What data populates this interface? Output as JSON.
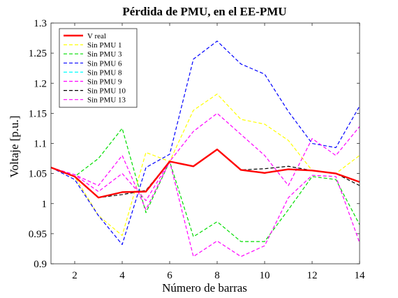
{
  "chart_data": {
    "type": "line",
    "title": "Pérdida de PMU, en el EE-PMU",
    "xlabel": "Número de barras",
    "ylabel": "Voltaje [p.u.]",
    "xlim": [
      1,
      14
    ],
    "ylim": [
      0.9,
      1.3
    ],
    "xticks": [
      2,
      4,
      6,
      8,
      10,
      12,
      14
    ],
    "yticks": [
      0.9,
      0.95,
      1,
      1.05,
      1.1,
      1.15,
      1.2,
      1.25,
      1.3
    ],
    "ytick_labels": [
      "0.9",
      "0.95",
      "1",
      "1.05",
      "1.1",
      "1.15",
      "1.2",
      "1.25",
      "1.3"
    ],
    "xtick_labels": [
      "2",
      "4",
      "6",
      "8",
      "10",
      "12",
      "14"
    ],
    "grid": false,
    "legend_position": "top-left",
    "x": [
      1,
      2,
      3,
      4,
      5,
      6,
      7,
      8,
      9,
      10,
      11,
      12,
      13,
      14
    ],
    "series": [
      {
        "name": "V real",
        "color": "#ff0000",
        "dash": "solid",
        "values": [
          1.06,
          1.045,
          1.01,
          1.019,
          1.02,
          1.07,
          1.062,
          1.09,
          1.056,
          1.051,
          1.057,
          1.055,
          1.05,
          1.036
        ]
      },
      {
        "name": "Sin PMU 1",
        "color": "#ffff00",
        "dash": "dashed",
        "values": [
          1.06,
          1.045,
          0.98,
          0.947,
          1.085,
          1.07,
          1.155,
          1.182,
          1.14,
          1.132,
          1.105,
          1.055,
          1.05,
          1.08
        ]
      },
      {
        "name": "Sin PMU 3",
        "color": "#00dd00",
        "dash": "dashed",
        "values": [
          1.06,
          1.045,
          1.075,
          1.125,
          0.985,
          1.07,
          0.945,
          0.97,
          0.937,
          0.937,
          0.99,
          1.045,
          1.04,
          0.965
        ]
      },
      {
        "name": "Sin PMU 6",
        "color": "#0000ff",
        "dash": "dashed",
        "values": [
          1.06,
          1.04,
          0.98,
          0.932,
          1.06,
          1.082,
          1.24,
          1.27,
          1.232,
          1.215,
          1.153,
          1.1,
          1.093,
          1.162
        ]
      },
      {
        "name": "Sin PMU 8",
        "color": "#00ffff",
        "dash": "dashed",
        "values": [
          1.06,
          1.045,
          1.01,
          1.019,
          1.02,
          1.07,
          1.062,
          1.09,
          1.056,
          1.051,
          1.057,
          1.055,
          1.05,
          1.036
        ]
      },
      {
        "name": "Sin PMU 9",
        "color": "#ff00ff",
        "dash": "dashed",
        "values": [
          1.06,
          1.048,
          1.02,
          1.05,
          1.005,
          1.07,
          1.12,
          1.15,
          1.115,
          1.08,
          1.03,
          1.108,
          1.08,
          1.128
        ]
      },
      {
        "name": "Sin PMU 10",
        "color": "#000000",
        "dash": "dashed",
        "values": [
          1.06,
          1.045,
          1.01,
          1.015,
          1.022,
          1.07,
          1.062,
          1.09,
          1.056,
          1.058,
          1.062,
          1.055,
          1.05,
          1.03
        ]
      },
      {
        "name": "Sin PMU 13",
        "color": "#ff00ff",
        "dash": "dashed",
        "values": [
          1.06,
          1.048,
          1.03,
          1.08,
          0.99,
          1.07,
          0.912,
          0.938,
          0.912,
          0.93,
          1.01,
          1.047,
          1.045,
          0.935
        ]
      }
    ]
  }
}
